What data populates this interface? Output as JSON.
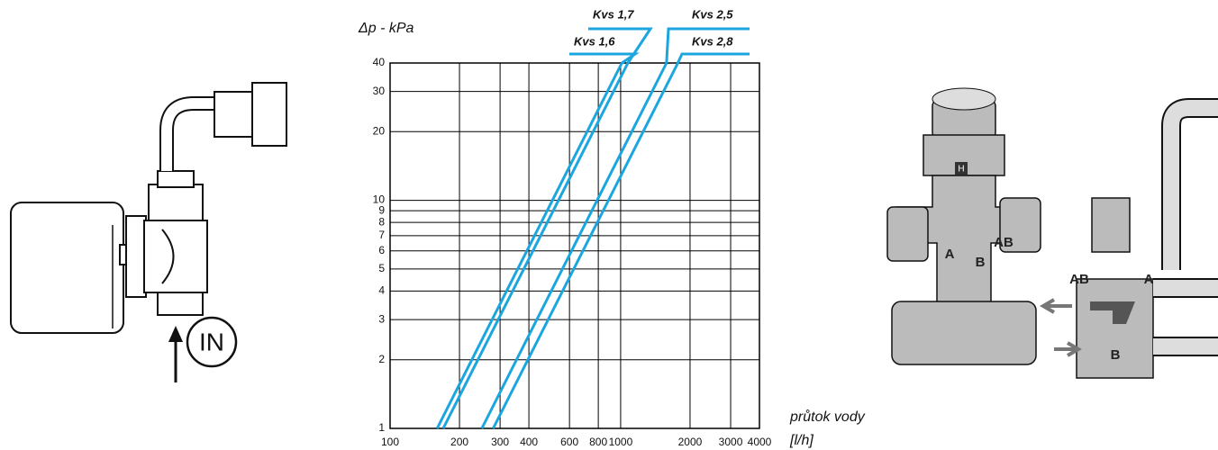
{
  "chart_data": {
    "type": "line",
    "y_label": "Δp - kPa",
    "x_label": [
      "průtok vody",
      "[l/h]"
    ],
    "log_x": true,
    "log_y": true,
    "grid": true,
    "xlim": [
      100,
      4000
    ],
    "ylim": [
      1,
      40
    ],
    "xticks": [
      100,
      200,
      300,
      400,
      600,
      800,
      1000,
      2000,
      3000,
      4000
    ],
    "yticks": [
      1,
      2,
      3,
      4,
      5,
      6,
      7,
      8,
      9,
      10,
      20,
      30,
      40
    ],
    "series": [
      {
        "name": "Kvs 1,6",
        "color": "#1ba6df",
        "x": [
          160,
          1012
        ],
        "values": [
          1,
          40
        ]
      },
      {
        "name": "Kvs 1,7",
        "color": "#1ba6df",
        "x": [
          170,
          1075
        ],
        "values": [
          1,
          40
        ]
      },
      {
        "name": "Kvs 2,5",
        "color": "#1ba6df",
        "x": [
          250,
          1581
        ],
        "values": [
          1,
          40
        ]
      },
      {
        "name": "Kvs 2,8",
        "color": "#1ba6df",
        "x": [
          280,
          1771
        ],
        "values": [
          1,
          40
        ]
      }
    ]
  },
  "illustrations": {
    "left": {
      "label": "IN"
    },
    "right": {
      "labels": [
        "H",
        "A",
        "B",
        "AB",
        "AB",
        "A",
        "B"
      ]
    }
  }
}
